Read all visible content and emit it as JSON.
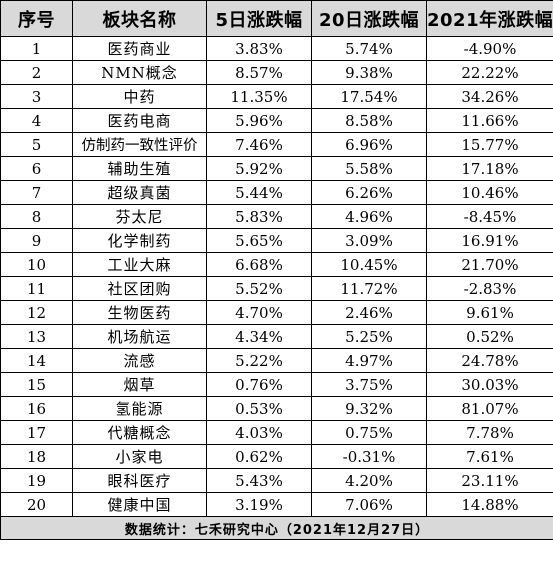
{
  "table": {
    "headers": [
      "序号",
      "板块名称",
      "5日涨跌幅",
      "20日涨跌幅",
      "2021年涨跌幅"
    ],
    "rows": [
      [
        "1",
        "医药商业",
        "3.83%",
        "5.74%",
        "-4.90%"
      ],
      [
        "2",
        "NMN概念",
        "8.57%",
        "9.38%",
        "22.22%"
      ],
      [
        "3",
        "中药",
        "11.35%",
        "17.54%",
        "34.26%"
      ],
      [
        "4",
        "医药电商",
        "5.96%",
        "8.58%",
        "11.66%"
      ],
      [
        "5",
        "仿制药一致性评价",
        "7.46%",
        "6.96%",
        "15.77%"
      ],
      [
        "6",
        "辅助生殖",
        "5.92%",
        "5.58%",
        "17.18%"
      ],
      [
        "7",
        "超级真菌",
        "5.44%",
        "6.26%",
        "10.46%"
      ],
      [
        "8",
        "芬太尼",
        "5.83%",
        "4.96%",
        "-8.45%"
      ],
      [
        "9",
        "化学制药",
        "5.65%",
        "3.09%",
        "16.91%"
      ],
      [
        "10",
        "工业大麻",
        "6.68%",
        "10.45%",
        "21.70%"
      ],
      [
        "11",
        "社区团购",
        "5.52%",
        "11.72%",
        "-2.83%"
      ],
      [
        "12",
        "生物医药",
        "4.70%",
        "2.46%",
        "9.61%"
      ],
      [
        "13",
        "机场航运",
        "4.34%",
        "5.25%",
        "0.52%"
      ],
      [
        "14",
        "流感",
        "5.22%",
        "4.97%",
        "24.78%"
      ],
      [
        "15",
        "烟草",
        "0.76%",
        "3.75%",
        "30.03%"
      ],
      [
        "16",
        "氢能源",
        "0.53%",
        "9.32%",
        "81.07%"
      ],
      [
        "17",
        "代糖概念",
        "4.03%",
        "0.75%",
        "7.78%"
      ],
      [
        "18",
        "小家电",
        "0.62%",
        "-0.31%",
        "7.61%"
      ],
      [
        "19",
        "眼科医疗",
        "5.43%",
        "4.20%",
        "23.11%"
      ],
      [
        "20",
        "健康中国",
        "3.19%",
        "7.06%",
        "14.88%"
      ]
    ],
    "footer": "数据统计：七禾研究中心（2021年12月27日）"
  }
}
